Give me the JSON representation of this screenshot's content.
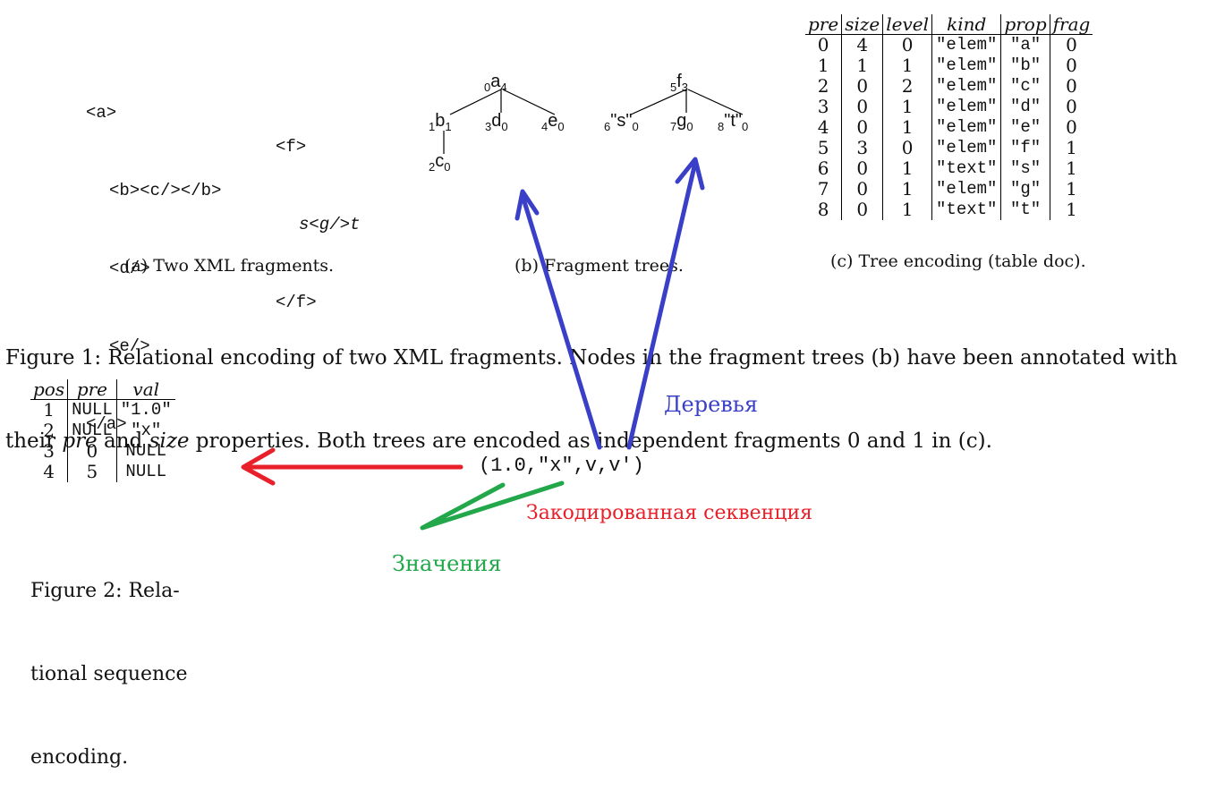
{
  "xml_fragments": {
    "a": [
      "<a>",
      "<b><c/></b>",
      "<d/>",
      "<e/>",
      "</a>"
    ],
    "f": [
      "<f>",
      "s<g/>t",
      "</f>"
    ]
  },
  "trees": {
    "a_nodes": [
      {
        "pre": "0",
        "label": "a",
        "size": "4"
      },
      {
        "pre": "1",
        "label": "b",
        "size": "1"
      },
      {
        "pre": "2",
        "label": "c",
        "size": "0"
      },
      {
        "pre": "3",
        "label": "d",
        "size": "0"
      },
      {
        "pre": "4",
        "label": "e",
        "size": "0"
      }
    ],
    "f_nodes": [
      {
        "pre": "5",
        "label": "f",
        "size": "3"
      },
      {
        "pre": "6",
        "label": "\"s\"",
        "size": "0"
      },
      {
        "pre": "7",
        "label": "g",
        "size": "0"
      },
      {
        "pre": "8",
        "label": "\"t\"",
        "size": "0"
      }
    ]
  },
  "doc_table": {
    "headers": [
      "pre",
      "size",
      "level",
      "kind",
      "prop",
      "frag"
    ],
    "rows": [
      [
        "0",
        "4",
        "0",
        "\"elem\"",
        "\"a\"",
        "0"
      ],
      [
        "1",
        "1",
        "1",
        "\"elem\"",
        "\"b\"",
        "0"
      ],
      [
        "2",
        "0",
        "2",
        "\"elem\"",
        "\"c\"",
        "0"
      ],
      [
        "3",
        "0",
        "1",
        "\"elem\"",
        "\"d\"",
        "0"
      ],
      [
        "4",
        "0",
        "1",
        "\"elem\"",
        "\"e\"",
        "0"
      ],
      [
        "5",
        "3",
        "0",
        "\"elem\"",
        "\"f\"",
        "1"
      ],
      [
        "6",
        "0",
        "1",
        "\"text\"",
        "\"s\"",
        "1"
      ],
      [
        "7",
        "0",
        "1",
        "\"elem\"",
        "\"g\"",
        "1"
      ],
      [
        "8",
        "0",
        "1",
        "\"text\"",
        "\"t\"",
        "1"
      ]
    ]
  },
  "captions": {
    "a": "(a) Two XML fragments.",
    "b": "(b) Fragment trees.",
    "c": "(c) Tree encoding (table doc)."
  },
  "figure1": {
    "line1": "Figure 1: Relational encoding of two XML fragments. Nodes in the fragment trees (b) have been annotated with",
    "line2": "their pre and size properties. Both trees are encoded as independent fragments 0 and 1 in (c)."
  },
  "seq_table": {
    "headers": [
      "pos",
      "pre",
      "val"
    ],
    "rows": [
      [
        "1",
        "NULL",
        "\"1.0\""
      ],
      [
        "2",
        "NULL",
        "\"x\""
      ],
      [
        "3",
        "0",
        "NULL"
      ],
      [
        "4",
        "5",
        "NULL"
      ]
    ]
  },
  "figure2": [
    "Figure 2: Rela-",
    "tional sequence",
    "encoding."
  ],
  "sequence": "(1.0,\"x\",v,v′)",
  "annotations": {
    "trees": "Деревья",
    "encoded": "Закодированная секвенция",
    "values": "Значения"
  },
  "colors": {
    "trees_arrow": "#3a3fc8",
    "encoded_arrow": "#e8202a",
    "values_arrow": "#22a84a"
  }
}
